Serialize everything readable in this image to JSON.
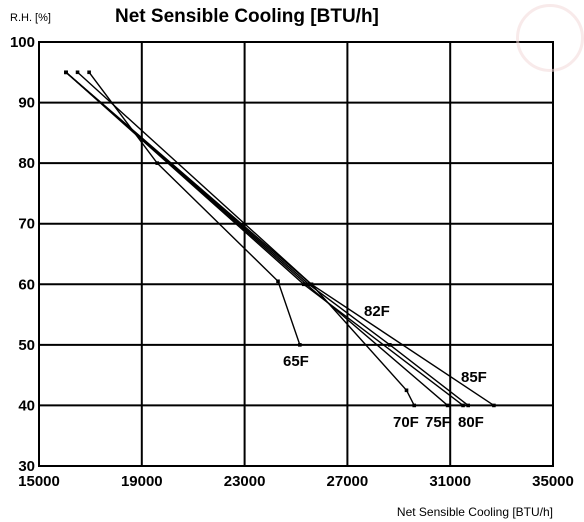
{
  "chart_data": {
    "type": "line",
    "title": "Net Sensible Cooling [BTU/h]",
    "ylabel": "R.H. [%]",
    "xlabel": "Net Sensible Cooling [BTU/h]",
    "xlim": [
      15000,
      35000
    ],
    "ylim": [
      30,
      100
    ],
    "xticks": [
      15000,
      19000,
      23000,
      27000,
      31000,
      35000
    ],
    "yticks": [
      30,
      40,
      50,
      60,
      70,
      80,
      90,
      100
    ],
    "grid": true,
    "series": [
      {
        "name": "65F",
        "x": [
          16950,
          19600,
          24300,
          25150
        ],
        "y": [
          95,
          80,
          60.5,
          50
        ]
      },
      {
        "name": "70F",
        "x": [
          16500,
          25600,
          29300,
          29600
        ],
        "y": [
          95,
          60,
          42.5,
          40
        ]
      },
      {
        "name": "75F",
        "x": [
          16050,
          25400,
          30900
        ],
        "y": [
          95,
          60,
          40
        ]
      },
      {
        "name": "80F",
        "x": [
          16050,
          25300,
          31500
        ],
        "y": [
          95,
          60,
          40
        ]
      },
      {
        "name": "82F",
        "x": [
          16050,
          25500,
          28650,
          31700
        ],
        "y": [
          95,
          60,
          50,
          40
        ]
      },
      {
        "name": "85F",
        "x": [
          16050,
          25600,
          32700
        ],
        "y": [
          95,
          60,
          40
        ]
      }
    ]
  }
}
